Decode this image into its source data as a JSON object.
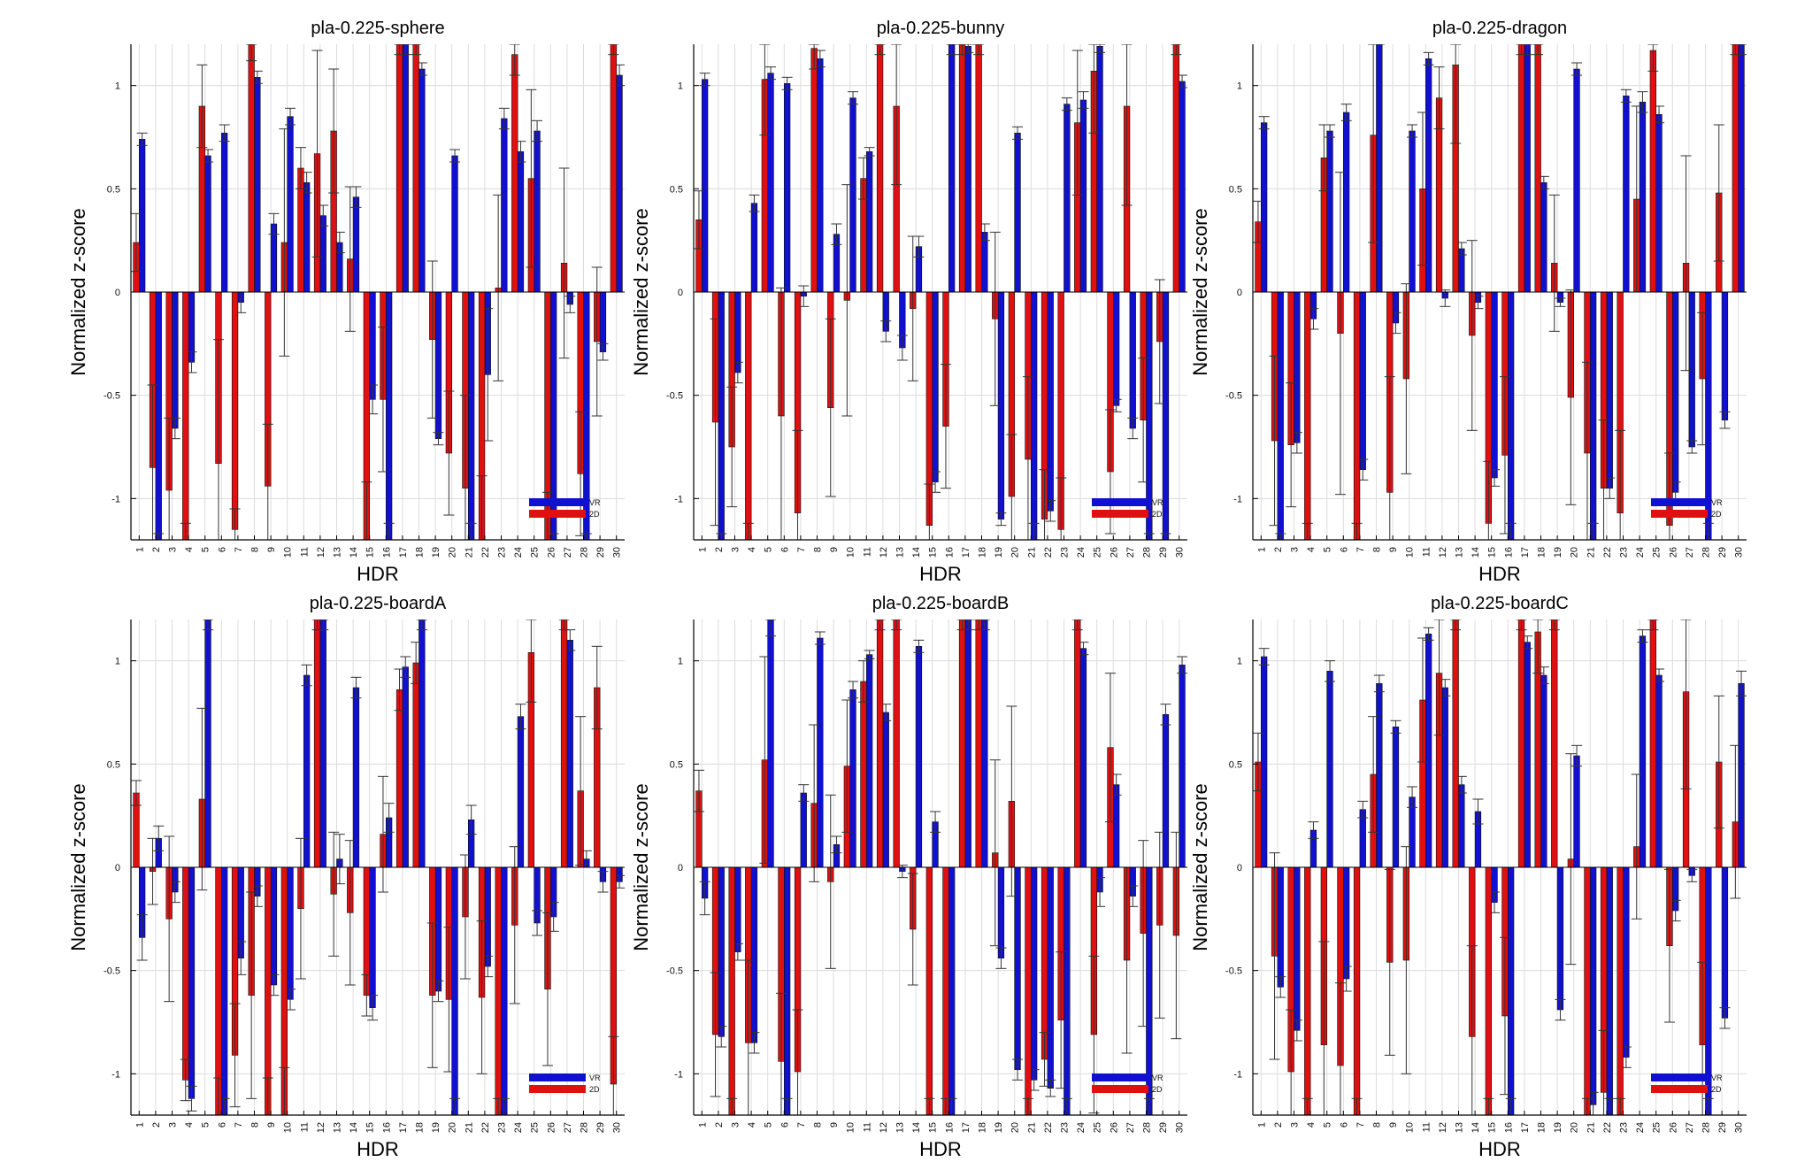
{
  "colors": {
    "vr": "#1010d0",
    "twod": "#e01010",
    "grid": "#dcdcdc",
    "axis": "#000000",
    "errorbar": "#333333"
  },
  "legend": {
    "vr": "VR",
    "twod": "2D",
    "placement": "lower-right"
  },
  "chart_data": [
    {
      "type": "bar",
      "title": "pla-0.225-sphere",
      "xlabel": "HDR",
      "ylabel": "Normalized z-score",
      "ylim": [
        -1.2,
        1.2
      ],
      "yticks": [
        -1,
        -0.5,
        0,
        0.5,
        1
      ],
      "grid": true,
      "categories": [
        "1",
        "2",
        "3",
        "4",
        "5",
        "6",
        "7",
        "8",
        "9",
        "10",
        "11",
        "12",
        "13",
        "14",
        "15",
        "16",
        "17",
        "18",
        "19",
        "20",
        "21",
        "22",
        "23",
        "24",
        "25",
        "26",
        "27",
        "28",
        "29",
        "30"
      ],
      "series": [
        {
          "name": "VR",
          "values": [
            0.74,
            -1.22,
            -0.66,
            -0.34,
            0.66,
            0.77,
            -0.05,
            1.04,
            0.33,
            0.85,
            0.53,
            0.37,
            0.24,
            0.46,
            -0.52,
            -1.22,
            1.25,
            1.08,
            -0.71,
            0.66,
            -1.22,
            -0.4,
            0.84,
            0.68,
            0.78,
            -1.22,
            -0.06,
            -1.22,
            -0.29,
            1.05
          ],
          "err": [
            0.03,
            0.05,
            0.05,
            0.05,
            0.03,
            0.04,
            0.05,
            0.03,
            0.05,
            0.04,
            0.05,
            0.05,
            0.05,
            0.05,
            0.07,
            0.1,
            0.1,
            0.03,
            0.03,
            0.03,
            0.1,
            0.32,
            0.05,
            0.05,
            0.05,
            0.05,
            0.04,
            0.05,
            0.04,
            0.05
          ]
        },
        {
          "name": "2D",
          "values": [
            0.24,
            -0.85,
            -0.96,
            -1.22,
            0.9,
            -0.83,
            -1.15,
            1.22,
            -0.94,
            0.24,
            0.6,
            0.67,
            0.78,
            0.16,
            -1.22,
            -0.52,
            1.25,
            1.25,
            -0.23,
            -0.78,
            -0.95,
            -1.22,
            0.02,
            1.15,
            0.55,
            -1.22,
            0.14,
            -0.88,
            -0.24,
            1.25
          ],
          "err": [
            0.14,
            0.4,
            0.35,
            0.1,
            0.2,
            0.6,
            0.1,
            0.1,
            0.3,
            0.55,
            0.1,
            0.5,
            0.3,
            0.35,
            0.3,
            0.35,
            0.1,
            0.1,
            0.38,
            0.3,
            0.45,
            0.33,
            0.45,
            0.1,
            0.43,
            0.25,
            0.46,
            0.3,
            0.36,
            0.1
          ]
        }
      ]
    },
    {
      "type": "bar",
      "title": "pla-0.225-bunny",
      "xlabel": "HDR",
      "ylabel": "Normalized z-score",
      "ylim": [
        -1.2,
        1.2
      ],
      "yticks": [
        -1,
        -0.5,
        0,
        0.5,
        1
      ],
      "grid": true,
      "categories": [
        "1",
        "2",
        "3",
        "4",
        "5",
        "6",
        "7",
        "8",
        "9",
        "10",
        "11",
        "12",
        "13",
        "14",
        "15",
        "16",
        "17",
        "18",
        "19",
        "20",
        "21",
        "22",
        "23",
        "24",
        "25",
        "26",
        "27",
        "28",
        "29",
        "30"
      ],
      "series": [
        {
          "name": "VR",
          "values": [
            1.03,
            -1.22,
            -0.39,
            0.43,
            1.06,
            1.01,
            -0.02,
            1.13,
            0.28,
            0.94,
            0.68,
            -0.19,
            -0.27,
            0.22,
            -0.92,
            1.25,
            1.19,
            0.29,
            -1.1,
            0.77,
            -1.22,
            -1.06,
            0.91,
            0.93,
            1.19,
            -0.55,
            -0.66,
            -1.22,
            -1.22,
            1.02
          ],
          "err": [
            0.03,
            0.05,
            0.05,
            0.04,
            0.03,
            0.03,
            0.05,
            0.04,
            0.05,
            0.03,
            0.02,
            0.05,
            0.06,
            0.05,
            0.05,
            0.1,
            0.03,
            0.04,
            0.03,
            0.03,
            0.1,
            0.05,
            0.03,
            0.04,
            0.03,
            0.03,
            0.05,
            0.05,
            0.05,
            0.03
          ]
        },
        {
          "name": "2D",
          "values": [
            0.35,
            -0.63,
            -0.75,
            -1.22,
            1.03,
            -0.6,
            -1.07,
            1.18,
            -0.56,
            -0.04,
            0.55,
            1.25,
            0.9,
            -0.08,
            -1.13,
            -0.65,
            1.25,
            1.25,
            -0.13,
            -0.99,
            -0.81,
            -1.1,
            -1.15,
            0.82,
            1.07,
            -0.87,
            0.9,
            -0.62,
            -0.24,
            1.25
          ],
          "err": [
            0.14,
            0.5,
            0.29,
            0.1,
            0.27,
            0.62,
            0.4,
            0.1,
            0.43,
            0.56,
            0.1,
            0.1,
            0.38,
            0.35,
            0.2,
            0.3,
            0.1,
            0.1,
            0.42,
            0.3,
            0.4,
            0.24,
            0.25,
            0.35,
            0.3,
            0.3,
            0.48,
            0.3,
            0.3,
            0.1
          ]
        }
      ]
    },
    {
      "type": "bar",
      "title": "pla-0.225-dragon",
      "xlabel": "HDR",
      "ylabel": "Normalized z-score",
      "ylim": [
        -1.2,
        1.2
      ],
      "yticks": [
        -1,
        -0.5,
        0,
        0.5,
        1
      ],
      "grid": true,
      "categories": [
        "1",
        "2",
        "3",
        "4",
        "5",
        "6",
        "7",
        "8",
        "9",
        "10",
        "11",
        "12",
        "13",
        "14",
        "15",
        "16",
        "17",
        "18",
        "19",
        "20",
        "21",
        "22",
        "23",
        "24",
        "25",
        "26",
        "27",
        "28",
        "29",
        "30"
      ],
      "series": [
        {
          "name": "VR",
          "values": [
            0.82,
            -1.22,
            -0.73,
            -0.13,
            0.78,
            0.87,
            -0.86,
            1.25,
            -0.15,
            0.78,
            1.13,
            -0.03,
            0.21,
            -0.05,
            -0.9,
            -1.22,
            1.25,
            0.53,
            -0.05,
            1.08,
            -1.22,
            -0.95,
            0.95,
            0.92,
            0.86,
            -0.97,
            -0.75,
            -1.22,
            -0.62,
            1.25
          ],
          "err": [
            0.03,
            0.05,
            0.05,
            0.05,
            0.03,
            0.04,
            0.05,
            0.03,
            0.05,
            0.03,
            0.03,
            0.04,
            0.03,
            0.03,
            0.04,
            0.1,
            0.1,
            0.03,
            0.02,
            0.03,
            0.1,
            0.05,
            0.03,
            0.05,
            0.04,
            0.05,
            0.03,
            0.1,
            0.04,
            0.1
          ]
        },
        {
          "name": "2D",
          "values": [
            0.34,
            -0.72,
            -0.74,
            -1.22,
            0.65,
            -0.2,
            -1.22,
            0.76,
            -0.97,
            -0.42,
            0.5,
            0.94,
            1.1,
            -0.21,
            -1.12,
            -0.79,
            1.25,
            1.25,
            0.14,
            -0.51,
            -0.78,
            -0.95,
            -1.07,
            0.45,
            1.17,
            -1.13,
            0.14,
            -0.42,
            0.48,
            1.25
          ],
          "err": [
            0.1,
            0.41,
            0.3,
            0.1,
            0.16,
            0.78,
            0.1,
            0.52,
            0.56,
            0.46,
            0.37,
            0.15,
            0.38,
            0.46,
            0.3,
            0.38,
            0.1,
            0.1,
            0.33,
            0.52,
            0.44,
            0.33,
            0.4,
            0.45,
            0.1,
            0.35,
            0.52,
            0.32,
            0.33,
            0.1
          ]
        }
      ]
    },
    {
      "type": "bar",
      "title": "pla-0.225-boardA",
      "xlabel": "HDR",
      "ylabel": "Normalized z-score",
      "ylim": [
        -1.2,
        1.2
      ],
      "yticks": [
        -1,
        -0.5,
        0,
        0.5,
        1
      ],
      "grid": true,
      "categories": [
        "1",
        "2",
        "3",
        "4",
        "5",
        "6",
        "7",
        "8",
        "9",
        "10",
        "11",
        "12",
        "13",
        "14",
        "15",
        "16",
        "17",
        "18",
        "19",
        "20",
        "21",
        "22",
        "23",
        "24",
        "25",
        "26",
        "27",
        "28",
        "29",
        "30"
      ],
      "series": [
        {
          "name": "VR",
          "values": [
            -0.34,
            0.14,
            -0.12,
            -1.12,
            1.25,
            -1.22,
            -0.44,
            -0.14,
            -0.57,
            -0.64,
            0.93,
            1.25,
            0.04,
            0.87,
            -0.68,
            0.24,
            0.97,
            1.25,
            -0.6,
            -1.22,
            0.23,
            -0.48,
            -1.22,
            0.73,
            -0.27,
            -0.24,
            1.1,
            0.04,
            -0.07,
            -0.07
          ],
          "err": [
            0.11,
            0.06,
            0.05,
            0.06,
            0.1,
            0.1,
            0.08,
            0.05,
            0.05,
            0.05,
            0.05,
            0.1,
            0.12,
            0.05,
            0.06,
            0.07,
            0.05,
            0.1,
            0.05,
            0.1,
            0.07,
            0.05,
            0.1,
            0.06,
            0.06,
            0.07,
            0.05,
            0.04,
            0.05,
            0.03
          ]
        },
        {
          "name": "2D",
          "values": [
            0.36,
            -0.02,
            -0.25,
            -1.03,
            0.33,
            -1.22,
            -0.91,
            -0.62,
            -1.22,
            -1.22,
            -0.2,
            1.25,
            -0.13,
            -0.22,
            -0.62,
            0.16,
            0.86,
            0.99,
            -0.62,
            -0.64,
            -0.24,
            -0.63,
            -1.22,
            -0.28,
            1.04,
            -0.59,
            1.25,
            0.37,
            0.87,
            -1.05
          ],
          "err": [
            0.06,
            0.16,
            0.4,
            0.1,
            0.44,
            0.2,
            0.25,
            0.5,
            0.2,
            0.25,
            0.34,
            0.1,
            0.3,
            0.35,
            0.1,
            0.28,
            0.1,
            0.1,
            0.35,
            0.35,
            0.3,
            0.37,
            0.1,
            0.38,
            0.24,
            0.37,
            0.1,
            0.36,
            0.2,
            0.23
          ]
        }
      ]
    },
    {
      "type": "bar",
      "title": "pla-0.225-boardB",
      "xlabel": "HDR",
      "ylabel": "Normalized z-score",
      "ylim": [
        -1.2,
        1.2
      ],
      "yticks": [
        -1,
        -0.5,
        0,
        0.5,
        1
      ],
      "grid": true,
      "categories": [
        "1",
        "2",
        "3",
        "4",
        "5",
        "6",
        "7",
        "8",
        "9",
        "10",
        "11",
        "12",
        "13",
        "14",
        "15",
        "16",
        "17",
        "18",
        "19",
        "20",
        "21",
        "22",
        "23",
        "24",
        "25",
        "26",
        "27",
        "28",
        "29",
        "30"
      ],
      "series": [
        {
          "name": "VR",
          "values": [
            -0.15,
            -0.82,
            -0.41,
            -0.85,
            1.22,
            -1.22,
            0.36,
            1.11,
            0.11,
            0.86,
            1.03,
            0.75,
            -0.02,
            1.07,
            0.22,
            -1.22,
            1.25,
            1.25,
            -0.44,
            -0.98,
            -1.03,
            -1.07,
            -1.22,
            1.06,
            -0.12,
            0.4,
            -0.14,
            -1.22,
            0.74,
            0.98
          ],
          "err": [
            0.08,
            0.05,
            0.04,
            0.05,
            0.1,
            0.1,
            0.04,
            0.03,
            0.04,
            0.04,
            0.02,
            0.04,
            0.03,
            0.03,
            0.05,
            0.1,
            0.1,
            0.1,
            0.05,
            0.05,
            0.05,
            0.04,
            0.1,
            0.03,
            0.07,
            0.05,
            0.05,
            0.1,
            0.05,
            0.04
          ]
        },
        {
          "name": "2D",
          "values": [
            0.37,
            -0.81,
            -1.22,
            -0.85,
            0.52,
            -0.94,
            -0.99,
            0.31,
            -0.07,
            0.49,
            0.9,
            1.25,
            1.25,
            -0.3,
            -1.22,
            -1.22,
            1.25,
            1.25,
            0.07,
            0.32,
            -1.22,
            -0.93,
            -0.74,
            1.25,
            -0.81,
            0.58,
            -0.45,
            -0.32,
            -0.28,
            -0.33
          ],
          "err": [
            0.1,
            0.3,
            0.1,
            0.4,
            0.5,
            0.33,
            0.3,
            0.38,
            0.42,
            0.32,
            0.1,
            0.1,
            0.1,
            0.27,
            0.1,
            0.1,
            0.1,
            0.1,
            0.45,
            0.46,
            0.1,
            0.13,
            0.33,
            0.1,
            0.38,
            0.36,
            0.45,
            0.45,
            0.45,
            0.5
          ]
        }
      ]
    },
    {
      "type": "bar",
      "title": "pla-0.225-boardC",
      "xlabel": "HDR",
      "ylabel": "Normalized z-score",
      "ylim": [
        -1.2,
        1.2
      ],
      "yticks": [
        -1,
        -0.5,
        0,
        0.5,
        1
      ],
      "grid": true,
      "categories": [
        "1",
        "2",
        "3",
        "4",
        "5",
        "6",
        "7",
        "8",
        "9",
        "10",
        "11",
        "12",
        "13",
        "14",
        "15",
        "16",
        "17",
        "18",
        "19",
        "20",
        "21",
        "22",
        "23",
        "24",
        "25",
        "26",
        "27",
        "28",
        "29",
        "30"
      ],
      "series": [
        {
          "name": "VR",
          "values": [
            1.02,
            -0.58,
            -0.79,
            0.18,
            0.95,
            -0.54,
            0.28,
            0.89,
            0.68,
            0.34,
            1.13,
            0.87,
            0.4,
            0.27,
            -0.17,
            -1.22,
            1.09,
            0.93,
            -0.69,
            0.54,
            -1.15,
            -1.22,
            -0.92,
            1.12,
            0.93,
            -0.21,
            -0.04,
            -1.22,
            -0.73,
            0.89
          ],
          "err": [
            0.04,
            0.05,
            0.05,
            0.04,
            0.05,
            0.06,
            0.04,
            0.04,
            0.03,
            0.05,
            0.03,
            0.04,
            0.04,
            0.06,
            0.05,
            0.1,
            0.03,
            0.04,
            0.05,
            0.05,
            0.06,
            0.1,
            0.05,
            0.03,
            0.03,
            0.05,
            0.03,
            0.1,
            0.05,
            0.06
          ]
        },
        {
          "name": "2D",
          "values": [
            0.51,
            -0.43,
            -0.99,
            -1.22,
            -0.86,
            -0.96,
            -1.22,
            0.45,
            -0.46,
            -0.45,
            0.81,
            0.94,
            1.25,
            -0.82,
            -1.22,
            -0.72,
            1.25,
            1.14,
            1.25,
            0.04,
            -1.22,
            -1.09,
            -1.22,
            0.1,
            1.25,
            -0.38,
            0.85,
            -0.86,
            0.51,
            0.22
          ],
          "err": [
            0.14,
            0.5,
            0.3,
            0.1,
            0.5,
            0.4,
            0.1,
            0.28,
            0.45,
            0.55,
            0.3,
            0.3,
            0.1,
            0.44,
            0.1,
            0.38,
            0.1,
            0.2,
            0.1,
            0.51,
            0.1,
            0.3,
            0.1,
            0.35,
            0.1,
            0.37,
            0.47,
            0.4,
            0.32,
            0.37
          ]
        }
      ]
    }
  ]
}
